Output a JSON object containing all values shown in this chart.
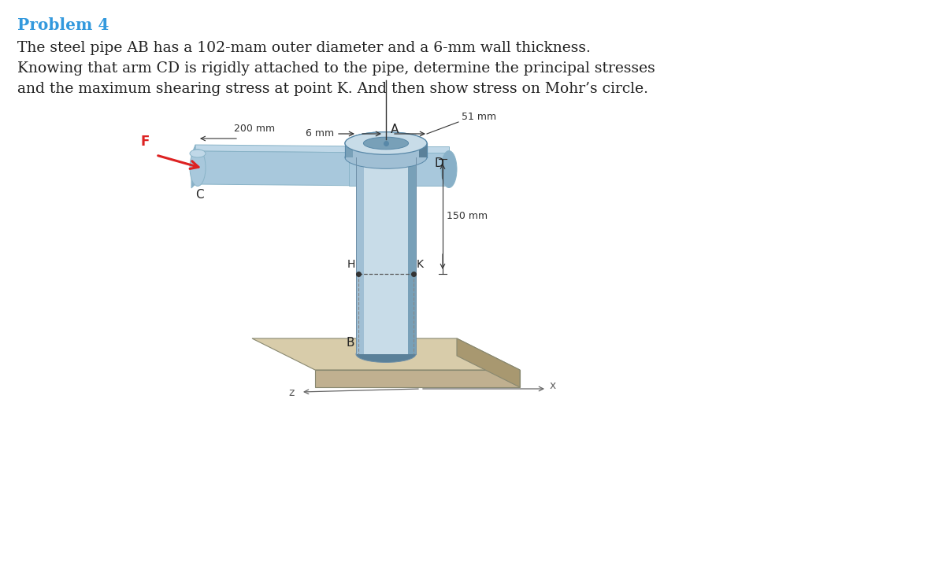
{
  "title": "Problem 4",
  "title_color": "#3399DD",
  "body_line1": "The steel pipe AB has a 102-mam outer diameter and a 6-mm wall thickness.",
  "body_line2": "Knowing that arm CD is rigidly attached to the pipe, determine the principal stresses",
  "body_line3": "and the maximum shearing stress at point K. And then show stress on Mohr’s circle.",
  "body_color": "#222222",
  "title_fontsize": 14.5,
  "body_fontsize": 13.5,
  "background_color": "#ffffff",
  "pipe_light": "#c8dce8",
  "pipe_mid": "#a0bfd4",
  "pipe_dark": "#78a0b8",
  "pipe_shadow": "#5a8099",
  "arm_top": "#c0d8e8",
  "arm_front": "#a8c8dc",
  "arm_side": "#88b0c8",
  "arm_dark": "#6898b0",
  "base_top": "#d8ccaa",
  "base_front": "#c0b090",
  "base_right": "#a89870",
  "dim_color": "#333333",
  "force_color": "#dd2222",
  "label_color": "#222222",
  "axis_color": "#666666"
}
